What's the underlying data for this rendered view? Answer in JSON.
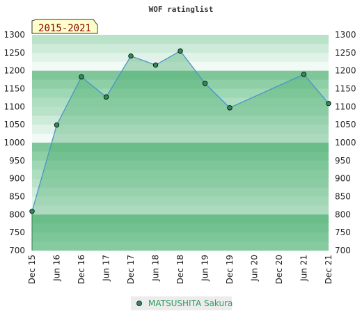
{
  "chart_data": {
    "type": "area",
    "title": "WOF ratinglist",
    "period_badge": "2015-2021",
    "x_tick_labels": [
      "Dec 15",
      "Jun 16",
      "Dec 16",
      "Jun 17",
      "Dec 17",
      "Jun 18",
      "Dec 18",
      "Jun 19",
      "Dec 19",
      "Jun 20",
      "Dec 20",
      "Jun 21",
      "Dec 21"
    ],
    "y_tick_labels": [
      "700",
      "750",
      "800",
      "850",
      "900",
      "950",
      "1000",
      "1050",
      "1100",
      "1150",
      "1200",
      "1250",
      "1300"
    ],
    "ylim": [
      700,
      1300
    ],
    "grid": true,
    "legend_position": "bottom-center",
    "series": [
      {
        "name": "MATSUSHITA Sakura",
        "x": [
          "Dec 15",
          "Jun 16",
          "Dec 16",
          "Jun 17",
          "Dec 17",
          "Jun 18",
          "Dec 18",
          "Jun 19",
          "Dec 19",
          "Jun 21",
          "Dec 21"
        ],
        "values": [
          809,
          1049,
          1183,
          1127,
          1241,
          1216,
          1255,
          1165,
          1097,
          1190,
          1109
        ]
      }
    ],
    "colors": {
      "line": "#4b93c8",
      "marker": "#2e8b57",
      "legend_text": "#2e9b5e",
      "badge_bg": "#ffffcc",
      "badge_text": "#8b0000"
    }
  }
}
